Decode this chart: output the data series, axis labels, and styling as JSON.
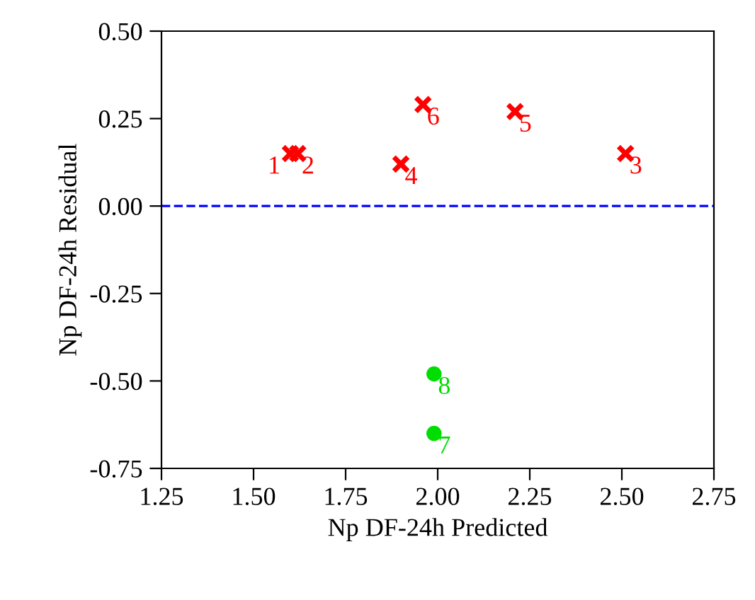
{
  "chart_data": {
    "type": "scatter",
    "xlabel": "Np DF-24h Predicted",
    "ylabel": "Np DF-24h Residual",
    "series": [
      {
        "color": "#ff0000",
        "marker": "cross",
        "x": [
          1.6,
          1.62,
          2.51,
          1.9,
          2.21,
          1.96
        ],
        "values": [
          0.15,
          0.15,
          0.15,
          0.12,
          0.27,
          0.29
        ]
      },
      {
        "color": "#00dd00",
        "marker": "circle",
        "x": [
          1.99,
          1.99
        ],
        "values": [
          -0.65,
          -0.48
        ]
      }
    ],
    "annotations": [
      {
        "text": "1",
        "x": 1.6,
        "y": 0.15
      },
      {
        "text": "2",
        "x": 1.62,
        "y": 0.15
      },
      {
        "text": "3",
        "x": 2.51,
        "y": 0.15
      },
      {
        "text": "4",
        "x": 1.9,
        "y": 0.12
      },
      {
        "text": "5",
        "x": 2.21,
        "y": 0.27
      },
      {
        "text": "6",
        "x": 1.96,
        "y": 0.29
      },
      {
        "text": "7",
        "x": 1.99,
        "y": -0.65
      },
      {
        "text": "8",
        "x": 1.99,
        "y": -0.48
      }
    ],
    "ref_lines": [
      {
        "axis": "y",
        "value": 0,
        "color": "#0000ff",
        "line_style": "dashed"
      }
    ],
    "xlim": [
      1.25,
      2.75
    ],
    "xticks": [
      {
        "value": 1.25,
        "label": "1.25"
      },
      {
        "value": 1.5,
        "label": "1.50"
      },
      {
        "value": 1.75,
        "label": "1.75"
      },
      {
        "value": 2.0,
        "label": "2.00"
      },
      {
        "value": 2.25,
        "label": "2.25"
      },
      {
        "value": 2.5,
        "label": "2.50"
      },
      {
        "value": 2.75,
        "label": "2.75"
      }
    ],
    "ylim": [
      -0.75,
      0.5
    ],
    "yticks": [
      {
        "value": -0.75,
        "label": "-0.75"
      },
      {
        "value": -0.5,
        "label": "-0.50"
      },
      {
        "value": -0.25,
        "label": "-0.25"
      },
      {
        "value": 0,
        "label": "0.00"
      },
      {
        "value": 0.25,
        "label": "0.25"
      },
      {
        "value": 0.5,
        "label": "0.50"
      }
    ],
    "grid": false
  }
}
